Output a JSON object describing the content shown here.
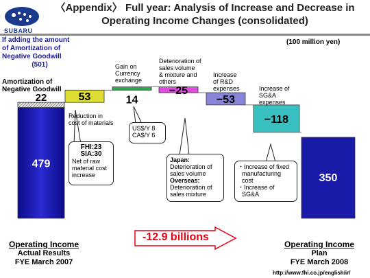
{
  "header": {
    "brand": "SUBARU",
    "title_line1": "〈Appendix〉 Full year: Analysis of Increase and Decrease in",
    "title_line2": "Operating Income Changes (consolidated)"
  },
  "unit": "(100 million yen)",
  "note": {
    "line1": "If adding the amount",
    "line2": "of Amortization of",
    "line3": "Negative Goodwill",
    "value": "(501)"
  },
  "amort_label_line1": "Amortization of",
  "amort_label_line2": "Negative Goodwill",
  "step_labels": {
    "currency": [
      "Gain on",
      "Currency",
      "exchange"
    ],
    "volume": [
      "Deterioration of",
      "sales volume",
      "& mixture and",
      "others"
    ],
    "rd": [
      "Increase",
      "of R&D",
      "expenses"
    ],
    "sga": [
      "Increase of",
      "SG&A",
      "expenses"
    ],
    "materials": [
      "Reduction in",
      "cost of materials"
    ]
  },
  "callouts": {
    "materials": [
      "FHI:23",
      "SIA:30",
      "Net of raw",
      "material cost",
      "increase"
    ],
    "currency": [
      "US$/Y 8",
      "CA$/Y 6"
    ],
    "volume": [
      "Japan:",
      "Deterioration of",
      "sales volume",
      "Overseas:",
      "Deterioration of",
      "sales mixture"
    ],
    "sga": [
      "・Increase of fixed",
      "manufacturing",
      "cost",
      "・Increase of",
      "SG&A"
    ]
  },
  "arrow_text": "-12.9 billions",
  "bottom_left": {
    "head": "Operating Income",
    "line2": "Actual Results",
    "line3": "FYE March 2007"
  },
  "bottom_right": {
    "head": "Operating Income",
    "line2": "Plan",
    "line3": "FYE March 2008"
  },
  "url": "http://www.fhi.co.jp/english/ir/",
  "colors": {
    "start": "#1a1aa8",
    "materials": "#dddd33",
    "currency": "#2fa84f",
    "volume": "#e24be0",
    "rd": "#8a84d8",
    "sga": "#38c0c0",
    "end": "#1a1aa8",
    "amort": "#c8c8c8",
    "arrow": "#e60012"
  },
  "chart_data": {
    "type": "waterfall",
    "categories": [
      "Operating Income Actual Results FYE March 2007",
      "Reduction in cost of materials",
      "Gain on Currency exchange",
      "Deterioration of sales volume & mixture and others",
      "Increase of R&D expenses",
      "Increase of SG&A expenses",
      "Operating Income Plan FYE March 2008"
    ],
    "values": [
      479,
      53,
      14,
      -25,
      -53,
      -118,
      350
    ],
    "labels": [
      "479",
      "53",
      "14",
      "−25",
      "−53",
      "−118",
      "350"
    ],
    "amortization_of_negative_goodwill": 22,
    "amortization_label": "22",
    "start_total": 501,
    "end_total": 350
  }
}
